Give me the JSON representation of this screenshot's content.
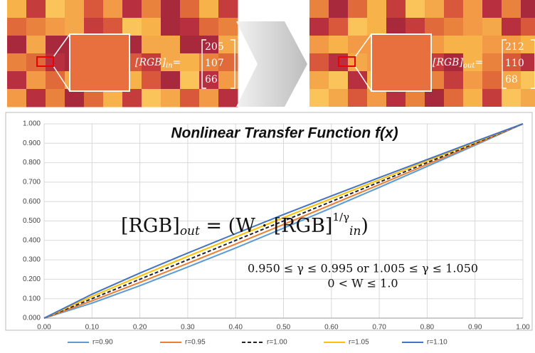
{
  "images": [
    {
      "label": "[RGB]",
      "sub": "in",
      "equals": "=",
      "values": [
        205,
        107,
        66
      ]
    },
    {
      "label": "[RGB]",
      "sub": "out",
      "equals": "=",
      "values": [
        212,
        110,
        68
      ]
    }
  ],
  "chart_data": {
    "type": "line",
    "title": "Nonlinear Transfer Function f(x)",
    "equation": [
      "[RGB]",
      "out",
      " = (W · [RGB]",
      "1/γ",
      "in",
      ")"
    ],
    "conditions": [
      "0.950 ≤ γ ≤ 0.995 or 1.005 ≤ γ ≤ 1.050",
      "0 < W ≤ 1.0"
    ],
    "x": [
      0,
      0.1,
      0.2,
      0.3,
      0.4,
      0.5,
      0.6,
      0.7,
      0.8,
      0.9,
      1.0
    ],
    "series": [
      {
        "name": "r=0.90",
        "color": "#5b9bd5",
        "values": [
          0,
          0.077,
          0.167,
          0.263,
          0.361,
          0.463,
          0.567,
          0.673,
          0.781,
          0.89,
          1.0
        ]
      },
      {
        "name": "r=0.95",
        "color": "#ed7d31",
        "values": [
          0,
          0.089,
          0.184,
          0.282,
          0.381,
          0.482,
          0.584,
          0.687,
          0.791,
          0.895,
          1.0
        ]
      },
      {
        "name": "r=1.00",
        "color": "#222222",
        "dashed": true,
        "values": [
          0,
          0.1,
          0.2,
          0.3,
          0.4,
          0.5,
          0.6,
          0.7,
          0.8,
          0.9,
          1.0
        ]
      },
      {
        "name": "r=1.05",
        "color": "#ffc000",
        "values": [
          0,
          0.112,
          0.216,
          0.318,
          0.418,
          0.517,
          0.615,
          0.712,
          0.809,
          0.905,
          1.0
        ]
      },
      {
        "name": "r=1.10",
        "color": "#4472c4",
        "values": [
          0,
          0.123,
          0.232,
          0.335,
          0.435,
          0.533,
          0.629,
          0.723,
          0.816,
          0.909,
          1.0
        ]
      }
    ],
    "xlim": [
      0,
      1
    ],
    "ylim": [
      0,
      1
    ],
    "xticks": [
      {
        "value": 0,
        "label": "0.00"
      },
      {
        "value": 0.1,
        "label": "0.10"
      },
      {
        "value": 0.2,
        "label": "0.20"
      },
      {
        "value": 0.3,
        "label": "0.30"
      },
      {
        "value": 0.4,
        "label": "0.40"
      },
      {
        "value": 0.5,
        "label": "0.50"
      },
      {
        "value": 0.6,
        "label": "0.60"
      },
      {
        "value": 0.7,
        "label": "0.70"
      },
      {
        "value": 0.8,
        "label": "0.80"
      },
      {
        "value": 0.9,
        "label": "0.90"
      },
      {
        "value": 1,
        "label": "1.00"
      }
    ],
    "yticks": [
      {
        "value": 0,
        "label": "0.000"
      },
      {
        "value": 0.1,
        "label": "0.100"
      },
      {
        "value": 0.2,
        "label": "0.200"
      },
      {
        "value": 0.3,
        "label": "0.300"
      },
      {
        "value": 0.4,
        "label": "0.400"
      },
      {
        "value": 0.5,
        "label": "0.500"
      },
      {
        "value": 0.6,
        "label": "0.600"
      },
      {
        "value": 0.7,
        "label": "0.700"
      },
      {
        "value": 0.8,
        "label": "0.800"
      },
      {
        "value": 0.9,
        "label": "0.900"
      },
      {
        "value": 1,
        "label": "1.000"
      }
    ],
    "grid": true,
    "legend": "bottom"
  }
}
